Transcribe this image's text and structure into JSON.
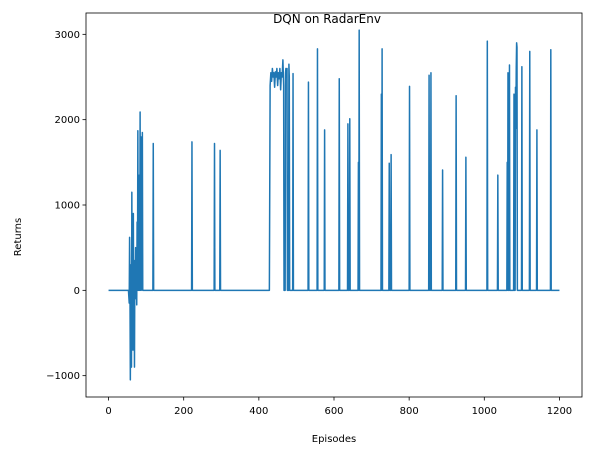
{
  "chart_data": {
    "type": "line",
    "title": "DQN on RadarEnv",
    "xlabel": "Episodes",
    "ylabel": "Returns",
    "xlim": [
      -60,
      1260
    ],
    "ylim": [
      -1250,
      3250
    ],
    "xticks": [
      0,
      200,
      400,
      600,
      800,
      1000,
      1200
    ],
    "yticks": [
      -1000,
      0,
      1000,
      2000,
      3000
    ],
    "grid": false,
    "line_color": "#1f77b4",
    "series": [
      {
        "name": "",
        "points": [
          [
            0,
            0
          ],
          [
            53,
            0
          ],
          [
            55,
            -150
          ],
          [
            56,
            620
          ],
          [
            57,
            30
          ],
          [
            58,
            -1050
          ],
          [
            59,
            200
          ],
          [
            60,
            300
          ],
          [
            61,
            -900
          ],
          [
            62,
            1150
          ],
          [
            63,
            -200
          ],
          [
            64,
            600
          ],
          [
            65,
            -700
          ],
          [
            66,
            900
          ],
          [
            67,
            -500
          ],
          [
            68,
            300
          ],
          [
            69,
            -900
          ],
          [
            70,
            350
          ],
          [
            71,
            -100
          ],
          [
            72,
            500
          ],
          [
            73,
            -80
          ],
          [
            74,
            200
          ],
          [
            75,
            -170
          ],
          [
            76,
            800
          ],
          [
            77,
            0
          ],
          [
            78,
            1870
          ],
          [
            79,
            0
          ],
          [
            80,
            300
          ],
          [
            81,
            0
          ],
          [
            82,
            1350
          ],
          [
            83,
            0
          ],
          [
            84,
            2090
          ],
          [
            85,
            0
          ],
          [
            86,
            1800
          ],
          [
            87,
            0
          ],
          [
            88,
            1000
          ],
          [
            89,
            20
          ],
          [
            90,
            1850
          ],
          [
            91,
            0
          ],
          [
            118,
            0
          ],
          [
            119,
            1720
          ],
          [
            120,
            0
          ],
          [
            221,
            0
          ],
          [
            222,
            1740
          ],
          [
            223,
            0
          ],
          [
            281,
            0
          ],
          [
            282,
            1720
          ],
          [
            283,
            0
          ],
          [
            296,
            0
          ],
          [
            297,
            1640
          ],
          [
            298,
            0
          ],
          [
            428,
            0
          ],
          [
            430,
            2400
          ],
          [
            432,
            2550
          ],
          [
            434,
            2450
          ],
          [
            436,
            2600
          ],
          [
            438,
            2500
          ],
          [
            440,
            2550
          ],
          [
            442,
            2380
          ],
          [
            444,
            2560
          ],
          [
            446,
            2500
          ],
          [
            448,
            2600
          ],
          [
            450,
            2400
          ],
          [
            452,
            2550
          ],
          [
            454,
            2480
          ],
          [
            456,
            2600
          ],
          [
            458,
            2350
          ],
          [
            460,
            2550
          ],
          [
            462,
            2500
          ],
          [
            464,
            2700
          ],
          [
            466,
            2400
          ],
          [
            467,
            0
          ],
          [
            470,
            0
          ],
          [
            471,
            2550
          ],
          [
            472,
            2600
          ],
          [
            473,
            2500
          ],
          [
            474,
            2550
          ],
          [
            475,
            2600
          ],
          [
            476,
            0
          ],
          [
            479,
            0
          ],
          [
            480,
            2650
          ],
          [
            481,
            2500
          ],
          [
            482,
            0
          ],
          [
            490,
            0
          ],
          [
            491,
            2540
          ],
          [
            492,
            0
          ],
          [
            531,
            0
          ],
          [
            532,
            2440
          ],
          [
            533,
            0
          ],
          [
            555,
            0
          ],
          [
            556,
            2830
          ],
          [
            557,
            0
          ],
          [
            574,
            0
          ],
          [
            575,
            1880
          ],
          [
            576,
            0
          ],
          [
            613,
            0
          ],
          [
            614,
            2480
          ],
          [
            615,
            0
          ],
          [
            636,
            0
          ],
          [
            637,
            1950
          ],
          [
            638,
            0
          ],
          [
            641,
            0
          ],
          [
            642,
            2010
          ],
          [
            643,
            0
          ],
          [
            664,
            0
          ],
          [
            665,
            1500
          ],
          [
            666,
            0
          ],
          [
            667,
            3050
          ],
          [
            668,
            0
          ],
          [
            725,
            0
          ],
          [
            726,
            2300
          ],
          [
            727,
            0
          ],
          [
            728,
            2830
          ],
          [
            729,
            0
          ],
          [
            746,
            0
          ],
          [
            747,
            1490
          ],
          [
            748,
            0
          ],
          [
            751,
            0
          ],
          [
            752,
            1590
          ],
          [
            753,
            0
          ],
          [
            800,
            0
          ],
          [
            801,
            2390
          ],
          [
            802,
            0
          ],
          [
            852,
            0
          ],
          [
            853,
            2520
          ],
          [
            854,
            0
          ],
          [
            857,
            0
          ],
          [
            858,
            2550
          ],
          [
            859,
            0
          ],
          [
            888,
            0
          ],
          [
            889,
            1410
          ],
          [
            890,
            0
          ],
          [
            924,
            0
          ],
          [
            925,
            2280
          ],
          [
            926,
            0
          ],
          [
            950,
            0
          ],
          [
            951,
            1560
          ],
          [
            952,
            0
          ],
          [
            1007,
            0
          ],
          [
            1008,
            2920
          ],
          [
            1009,
            0
          ],
          [
            1035,
            0
          ],
          [
            1036,
            1350
          ],
          [
            1037,
            0
          ],
          [
            1060,
            0
          ],
          [
            1061,
            1500
          ],
          [
            1062,
            0
          ],
          [
            1063,
            2550
          ],
          [
            1064,
            0
          ],
          [
            1066,
            0
          ],
          [
            1067,
            2640
          ],
          [
            1068,
            0
          ],
          [
            1078,
            0
          ],
          [
            1079,
            2300
          ],
          [
            1080,
            0
          ],
          [
            1082,
            0
          ],
          [
            1083,
            2380
          ],
          [
            1084,
            1900
          ],
          [
            1085,
            2600
          ],
          [
            1086,
            2900
          ],
          [
            1087,
            2850
          ],
          [
            1088,
            0
          ],
          [
            1099,
            0
          ],
          [
            1100,
            2620
          ],
          [
            1101,
            0
          ],
          [
            1120,
            0
          ],
          [
            1121,
            2800
          ],
          [
            1122,
            0
          ],
          [
            1139,
            0
          ],
          [
            1140,
            1880
          ],
          [
            1141,
            0
          ],
          [
            1176,
            0
          ],
          [
            1177,
            2820
          ],
          [
            1178,
            0
          ],
          [
            1200,
            0
          ]
        ]
      }
    ]
  }
}
